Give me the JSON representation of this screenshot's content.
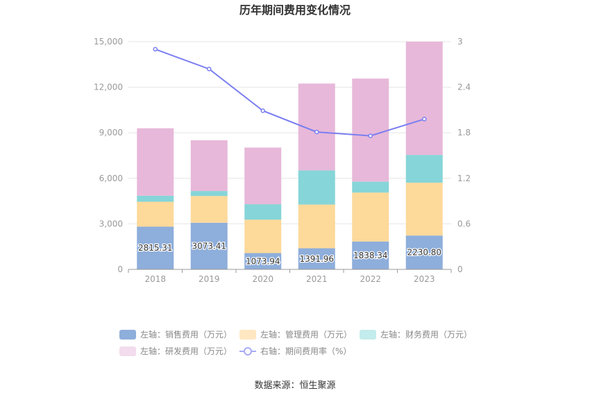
{
  "chart_data": {
    "type": "bar",
    "stacked": true,
    "title": "历年期间费用变化情况",
    "categories": [
      "2018",
      "2019",
      "2020",
      "2021",
      "2022",
      "2023"
    ],
    "y_left": {
      "min": 0,
      "max": 15000,
      "ticks": [
        "0",
        "3,000",
        "6,000",
        "9,000",
        "12,000",
        "15,000"
      ]
    },
    "y_right": {
      "min": 0,
      "max": 3,
      "ticks": [
        "0",
        "0.6",
        "1.2",
        "1.8",
        "2.4",
        "3"
      ]
    },
    "series": [
      {
        "name": "左轴：销售费用（万元）",
        "type": "bar",
        "axis": "left",
        "color": "#8eaedb",
        "values": [
          2815.31,
          3073.41,
          1073.94,
          1391.96,
          1838.34,
          2230.8
        ],
        "labels": [
          "2815.31",
          "3073.41",
          "1073.94",
          "1391.96",
          "1838.34",
          "2230.80"
        ]
      },
      {
        "name": "左轴：管理费用（万元）",
        "type": "bar",
        "axis": "left",
        "color": "#fdd99a",
        "values": [
          1640,
          1760,
          2200,
          2880,
          3220,
          3480
        ]
      },
      {
        "name": "左轴：财务费用（万元）",
        "type": "bar",
        "axis": "left",
        "color": "#86d5d8",
        "values": [
          400,
          330,
          1020,
          2250,
          720,
          1830
        ]
      },
      {
        "name": "左轴：研发费用（万元）",
        "type": "bar",
        "axis": "left",
        "color": "#e7b8d9",
        "values": [
          4440,
          3340,
          3730,
          5720,
          6790,
          7460
        ]
      },
      {
        "name": "右轴：期间费用率（%）",
        "type": "line",
        "axis": "right",
        "color": "#7a7ef0",
        "values": [
          2.9,
          2.64,
          2.09,
          1.81,
          1.76,
          1.98
        ]
      }
    ],
    "legend_colors": [
      "#8eaedb",
      "#ffe7c1",
      "#c3ecec",
      "#f2dced",
      "#a7abf5"
    ],
    "source": "数据来源：恒生聚源"
  }
}
